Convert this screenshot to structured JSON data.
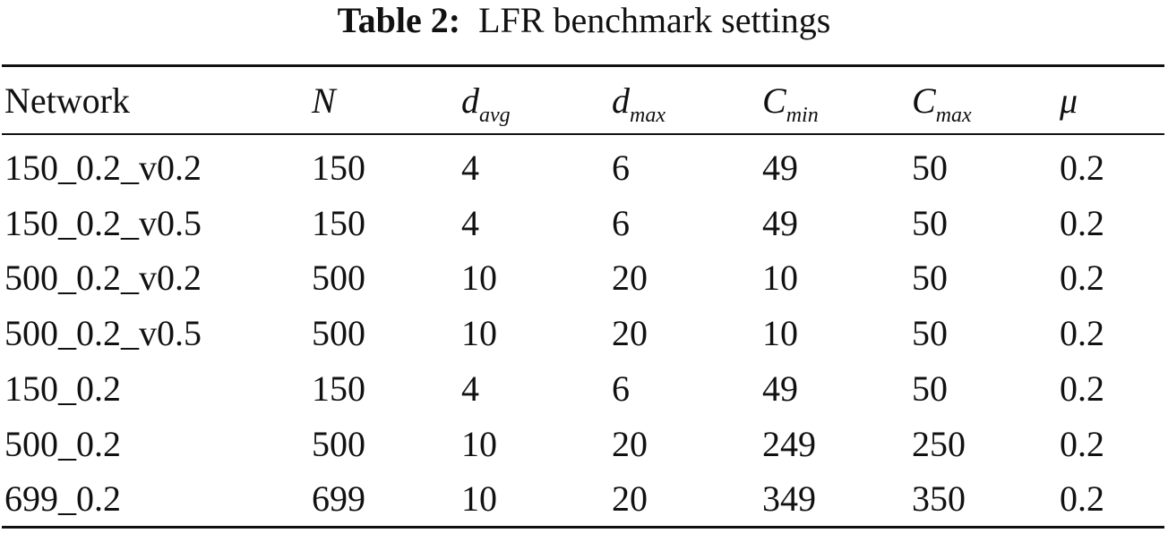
{
  "caption": {
    "label": "Table 2:",
    "text": "LFR benchmark settings"
  },
  "table": {
    "headers": [
      {
        "main": "Network"
      },
      {
        "main": "N"
      },
      {
        "main": "d",
        "sub": "avg"
      },
      {
        "main": "d",
        "sub": "max"
      },
      {
        "main": "C",
        "sub": "min"
      },
      {
        "main": "C",
        "sub": "max"
      },
      {
        "main": "μ"
      }
    ],
    "rows": [
      [
        "150_0.2_v0.2",
        150,
        4,
        6,
        49,
        50,
        0.2
      ],
      [
        "150_0.2_v0.5",
        150,
        4,
        6,
        49,
        50,
        0.2
      ],
      [
        "500_0.2_v0.2",
        500,
        10,
        20,
        10,
        50,
        0.2
      ],
      [
        "500_0.2_v0.5",
        500,
        10,
        20,
        10,
        50,
        0.2
      ],
      [
        "150_0.2",
        150,
        4,
        6,
        49,
        50,
        0.2
      ],
      [
        "500_0.2",
        500,
        10,
        20,
        249,
        250,
        0.2
      ],
      [
        "699_0.2",
        699,
        10,
        20,
        349,
        350,
        0.2
      ]
    ]
  }
}
